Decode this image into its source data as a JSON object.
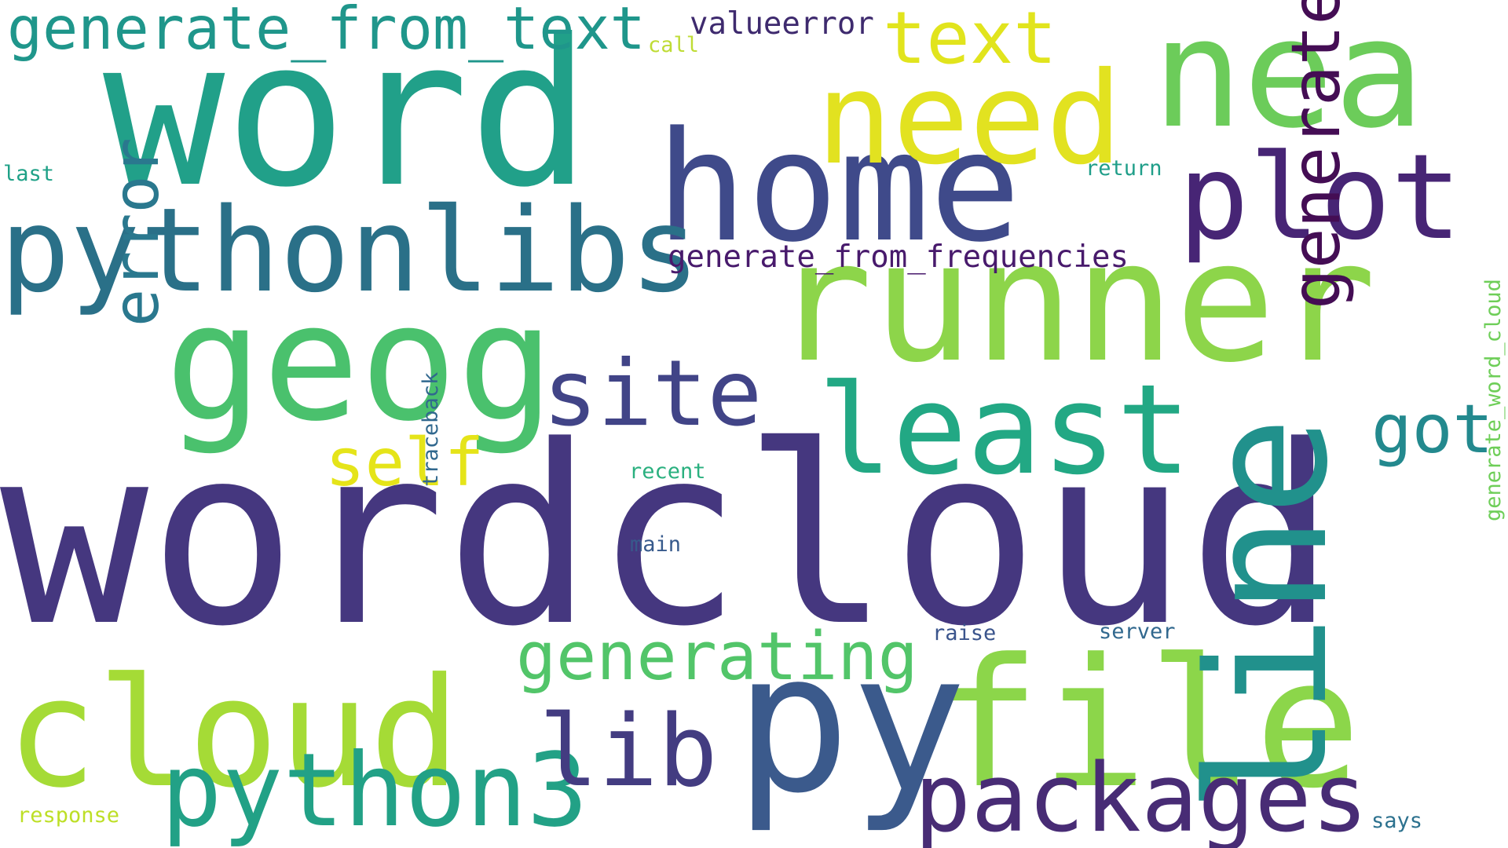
{
  "words": [
    {
      "text": "wordcloud",
      "color": "#45377f",
      "vertical": false
    },
    {
      "text": "word",
      "color": "#21a089",
      "vertical": false
    },
    {
      "text": "runner",
      "color": "#8dd54a",
      "vertical": false
    },
    {
      "text": "nea",
      "color": "#6ccc5a",
      "vertical": false
    },
    {
      "text": "cloud",
      "color": "#a5db36",
      "vertical": false
    },
    {
      "text": "file",
      "color": "#8cd64a",
      "vertical": false
    },
    {
      "text": "py",
      "color": "#3b5a8c",
      "vertical": false
    },
    {
      "text": "line",
      "color": "#21918c",
      "vertical": true
    },
    {
      "text": "geog",
      "color": "#4ac16d",
      "vertical": false
    },
    {
      "text": "home",
      "color": "#3f4a8a",
      "vertical": false
    },
    {
      "text": "need",
      "color": "#e2e220",
      "vertical": false
    },
    {
      "text": "plot",
      "color": "#472575",
      "vertical": false
    },
    {
      "text": "pythonlibs",
      "color": "#2a7088",
      "vertical": false
    },
    {
      "text": "least",
      "color": "#22a884",
      "vertical": false
    },
    {
      "text": "python3",
      "color": "#22a186",
      "vertical": false
    },
    {
      "text": "packages",
      "color": "#482c75",
      "vertical": false
    },
    {
      "text": "lib",
      "color": "#433c81",
      "vertical": false
    },
    {
      "text": "site",
      "color": "#414487",
      "vertical": false
    },
    {
      "text": "text",
      "color": "#e1e41d",
      "vertical": false
    },
    {
      "text": "generate_from_text",
      "color": "#1f968b",
      "vertical": false
    },
    {
      "text": "generating",
      "color": "#52c569",
      "vertical": false
    },
    {
      "text": "generate",
      "color": "#440d54",
      "vertical": true
    },
    {
      "text": "error",
      "color": "#2a788e",
      "vertical": true
    },
    {
      "text": "got",
      "color": "#23898e",
      "vertical": false
    },
    {
      "text": "self",
      "color": "#e5e419",
      "vertical": false
    },
    {
      "text": "generate_from_frequencies",
      "color": "#481a6c",
      "vertical": false
    },
    {
      "text": "valueerror",
      "color": "#3e2a6e",
      "vertical": false
    },
    {
      "text": "generate_word_cloud",
      "color": "#6ece58",
      "vertical": true
    },
    {
      "text": "traceback",
      "color": "#31688e",
      "vertical": true
    },
    {
      "text": "call",
      "color": "#bfdc35",
      "vertical": false
    },
    {
      "text": "last",
      "color": "#1fa187",
      "vertical": false
    },
    {
      "text": "return",
      "color": "#1f9e89",
      "vertical": false
    },
    {
      "text": "recent",
      "color": "#2ab07f",
      "vertical": false
    },
    {
      "text": "main",
      "color": "#375a8c",
      "vertical": false
    },
    {
      "text": "raise",
      "color": "#3a548c",
      "vertical": false
    },
    {
      "text": "server",
      "color": "#31688e",
      "vertical": false
    },
    {
      "text": "response",
      "color": "#bddf26",
      "vertical": false
    },
    {
      "text": "says",
      "color": "#2c718e",
      "vertical": false
    }
  ]
}
